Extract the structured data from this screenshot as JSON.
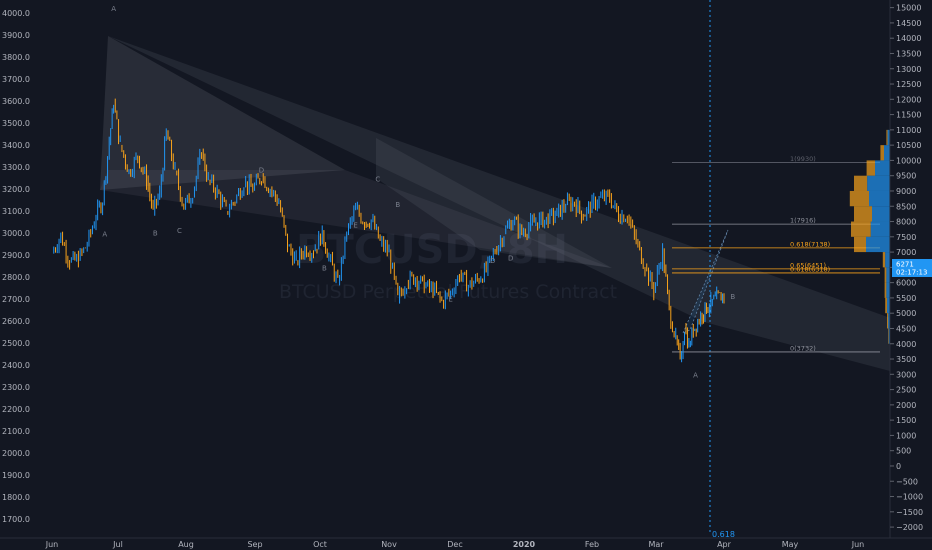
{
  "chart_data": {
    "type": "line",
    "watermark": {
      "symbol": "BTCUSD, 8H",
      "description": "BTCUSD Perpetual Futures Contract"
    },
    "left_axis": {
      "ylim": [
        1560,
        4060
      ],
      "ticks": [
        1600,
        1700,
        1800,
        1900,
        2000,
        2100,
        2200,
        2300,
        2400,
        2500,
        2600,
        2700,
        2800,
        2900,
        3000,
        3100,
        3200,
        3300,
        3400,
        3500,
        3600,
        3700,
        3800,
        3900,
        4000
      ],
      "tick_labels": [
        "1600.0",
        "1700.0",
        "1800.0",
        "1900.0",
        "2000.0",
        "2100.0",
        "2200.0",
        "2300.0",
        "2400.0",
        "2500.0",
        "2600.0",
        "2700.0",
        "2800.0",
        "2900.0",
        "3000.0",
        "3100.0",
        "3200.0",
        "3300.0",
        "3400.0",
        "3500.0",
        "3600.0",
        "3700.0",
        "3800.0",
        "3900.0",
        "4000.0"
      ]
    },
    "right_axis": {
      "ylim": [
        -2750,
        15250
      ],
      "ticks": [
        15000,
        14500,
        14000,
        13500,
        13000,
        12500,
        12000,
        11500,
        11000,
        10500,
        10000,
        9500,
        9000,
        8500,
        8000,
        7500,
        7000,
        6500,
        6000,
        5500,
        5000,
        4500,
        4000,
        3500,
        3000,
        2500,
        2000,
        1500,
        1000,
        500,
        0,
        -500,
        -1000,
        -1500,
        -2000,
        -2500
      ],
      "tick_labels": [
        "15000",
        "14500",
        "14000",
        "13500",
        "13000",
        "12500",
        "12000",
        "11500",
        "11000",
        "10500",
        "10000",
        "9500",
        "9000",
        "8500",
        "8000",
        "7500",
        "7000",
        "6500",
        "6000",
        "5500",
        "5000",
        "4500",
        "4000",
        "3500",
        "3000",
        "2500",
        "2000",
        "1500",
        "1000",
        "500",
        "0",
        "−500",
        "−1000",
        "−1500",
        "−2000",
        "−2500"
      ],
      "price_label": "6271",
      "countdown_label": "02:17:13"
    },
    "x_axis": {
      "labels": [
        "Jun",
        "Jul",
        "Aug",
        "Sep",
        "Oct",
        "Nov",
        "Dec",
        "2020",
        "Feb",
        "Mar",
        "Apr",
        "May",
        "Jun"
      ],
      "label_days": [
        0,
        30,
        61,
        92,
        122,
        153,
        183,
        214,
        245,
        274,
        305,
        335,
        366
      ]
    },
    "fib_levels": [
      {
        "label": "1(9930)",
        "value": 9930,
        "color": "#5d606b"
      },
      {
        "label": "1(7916)",
        "value": 7916,
        "color": "#8f929c"
      },
      {
        "label": "0.618(7138)",
        "value": 7138,
        "color": "#f7a21b"
      },
      {
        "label": "0.65(6451)",
        "value": 6451,
        "color": "#f7a21b"
      },
      {
        "label": "0.618(6318)",
        "value": 6318,
        "color": "#f7a21b"
      },
      {
        "label": "0(3732)",
        "value": 3732,
        "color": "#8f929c"
      }
    ],
    "wave_labels": [
      {
        "text": "A",
        "day": 28,
        "value": 4010
      },
      {
        "text": "A",
        "day": 24,
        "value": 2985
      },
      {
        "text": "B",
        "day": 47,
        "value": 2990
      },
      {
        "text": "C",
        "day": 58,
        "value": 3000
      },
      {
        "text": "D",
        "day": 95,
        "value": 3275
      },
      {
        "text": "E",
        "day": 138,
        "value": 3025
      },
      {
        "text": "C",
        "day": 148,
        "value": 3235
      },
      {
        "text": "B",
        "day": 157,
        "value": 3120
      },
      {
        "text": "B",
        "day": 124,
        "value": 2830
      },
      {
        "text": "D",
        "day": 200,
        "value": 2865
      },
      {
        "text": "E",
        "day": 181,
        "value": 2690
      },
      {
        "text": "D",
        "day": 208,
        "value": 2875
      },
      {
        "text": "A",
        "day": 292,
        "value": 2345
      },
      {
        "text": "B",
        "day": 309,
        "value": 2700
      }
    ],
    "series": [
      {
        "name": "",
        "price_axis": "left",
        "x": [
          0,
          4,
          8,
          12,
          16,
          20,
          23,
          26,
          28,
          31,
          35,
          39,
          43,
          46,
          49,
          52,
          56,
          60,
          64,
          68,
          71,
          75,
          79,
          83,
          87,
          91,
          95,
          99,
          103,
          107,
          111,
          115,
          119,
          123,
          126,
          130,
          134,
          138,
          142,
          145,
          149,
          153,
          157,
          161,
          165,
          169,
          173,
          177,
          181,
          185,
          189,
          193,
          197,
          201,
          205,
          209,
          213,
          217,
          221,
          225,
          229,
          233,
          237,
          241,
          245,
          249,
          253,
          257,
          261,
          265,
          269,
          273,
          277,
          280,
          283,
          285,
          287,
          289,
          291,
          293,
          295,
          297,
          299,
          301,
          303,
          305
        ],
        "y": [
          2910,
          2990,
          2870,
          2880,
          2950,
          3080,
          3150,
          3420,
          3590,
          3400,
          3280,
          3350,
          3240,
          3100,
          3180,
          3460,
          3280,
          3120,
          3180,
          3370,
          3240,
          3190,
          3100,
          3150,
          3230,
          3200,
          3260,
          3200,
          3140,
          2940,
          2870,
          2930,
          2920,
          3000,
          2890,
          2770,
          3000,
          3110,
          3050,
          3060,
          2960,
          2910,
          2700,
          2780,
          2800,
          2760,
          2740,
          2690,
          2730,
          2810,
          2760,
          2790,
          2830,
          2920,
          3000,
          3060,
          3000,
          3040,
          3060,
          3060,
          3090,
          3130,
          3140,
          3080,
          3130,
          3160,
          3160,
          3080,
          3080,
          2960,
          2850,
          2740,
          2920,
          2650,
          2520,
          2420,
          2570,
          2490,
          2560,
          2600,
          2630,
          2660,
          2680,
          2700,
          2710,
          2720
        ]
      }
    ],
    "volume_profile": [
      {
        "price": 10750,
        "bid": 4,
        "ask": 2
      },
      {
        "price": 10250,
        "bid": 10,
        "ask": 6
      },
      {
        "price": 9750,
        "bid": 25,
        "ask": 14
      },
      {
        "price": 9250,
        "bid": 38,
        "ask": 22
      },
      {
        "price": 8750,
        "bid": 35,
        "ask": 32
      },
      {
        "price": 8250,
        "bid": 30,
        "ask": 30
      },
      {
        "price": 7750,
        "bid": 32,
        "ask": 33
      },
      {
        "price": 7250,
        "bid": 40,
        "ask": 20
      },
      {
        "price": 6750,
        "bid": 8,
        "ask": 4
      },
      {
        "price": 6250,
        "bid": 6,
        "ask": 3
      },
      {
        "price": 5750,
        "bid": 6,
        "ask": 3
      },
      {
        "price": 5250,
        "bid": 5,
        "ask": 3
      },
      {
        "price": 4750,
        "bid": 3,
        "ask": 2
      },
      {
        "price": 4250,
        "bid": 2,
        "ask": 1
      }
    ],
    "projection_line_label": "0.618",
    "colors": {
      "up": "#2196f3",
      "down": "#f7a21b",
      "background": "#131722",
      "axis_text": "#b2b5be",
      "channel": "#787b86"
    }
  }
}
